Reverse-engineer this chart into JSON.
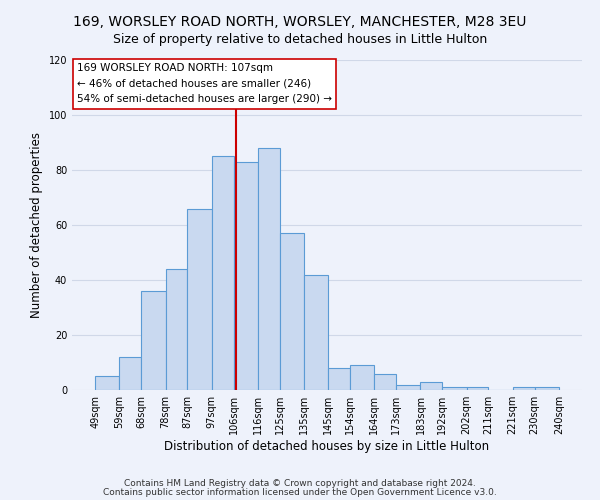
{
  "title": "169, WORSLEY ROAD NORTH, WORSLEY, MANCHESTER, M28 3EU",
  "subtitle": "Size of property relative to detached houses in Little Hulton",
  "xlabel": "Distribution of detached houses by size in Little Hulton",
  "ylabel": "Number of detached properties",
  "bar_edges": [
    49,
    59,
    68,
    78,
    87,
    97,
    106,
    116,
    125,
    135,
    145,
    154,
    164,
    173,
    183,
    192,
    202,
    211,
    221,
    230,
    240
  ],
  "bar_heights": [
    5,
    12,
    36,
    44,
    66,
    85,
    83,
    88,
    57,
    42,
    8,
    9,
    6,
    2,
    3,
    1,
    1,
    0,
    1,
    1
  ],
  "bar_color": "#c9d9f0",
  "bar_edge_color": "#5b9bd5",
  "vline_x": 107,
  "vline_color": "#cc0000",
  "annotation_lines": [
    "169 WORSLEY ROAD NORTH: 107sqm",
    "← 46% of detached houses are smaller (246)",
    "54% of semi-detached houses are larger (290) →"
  ],
  "annotation_box_color": "#ffffff",
  "annotation_box_edge_color": "#cc0000",
  "ylim": [
    0,
    120
  ],
  "yticks": [
    0,
    20,
    40,
    60,
    80,
    100,
    120
  ],
  "tick_labels": [
    "49sqm",
    "59sqm",
    "68sqm",
    "78sqm",
    "87sqm",
    "97sqm",
    "106sqm",
    "116sqm",
    "125sqm",
    "135sqm",
    "145sqm",
    "154sqm",
    "164sqm",
    "173sqm",
    "183sqm",
    "192sqm",
    "202sqm",
    "211sqm",
    "221sqm",
    "230sqm",
    "240sqm"
  ],
  "footer1": "Contains HM Land Registry data © Crown copyright and database right 2024.",
  "footer2": "Contains public sector information licensed under the Open Government Licence v3.0.",
  "background_color": "#eef2fb",
  "plot_bg_color": "#eef2fb",
  "grid_color": "#d0d8e8",
  "title_fontsize": 10,
  "subtitle_fontsize": 9,
  "axis_label_fontsize": 8.5,
  "tick_fontsize": 7,
  "annot_fontsize": 7.5,
  "footer_fontsize": 6.5
}
